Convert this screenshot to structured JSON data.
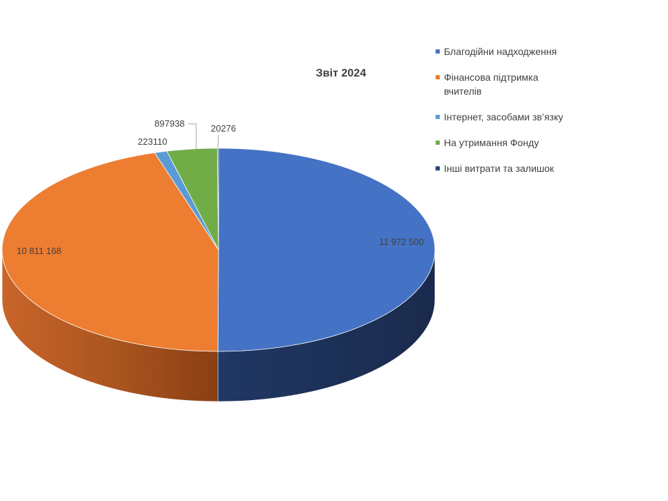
{
  "chart_data": {
    "type": "pie",
    "title": "Звіт 2024",
    "categories": [
      "Благодійни надходження",
      "Фінансова підтримка вчителів",
      "Інтернет, засобами зв’язку",
      "На утримання Фонду",
      "Інші витрати та залишок"
    ],
    "values": [
      11972500,
      10811168,
      223110,
      897938,
      20276
    ],
    "data_labels": [
      "11 972 500",
      "10 811 168",
      "223110",
      "897938",
      "20276"
    ],
    "colors": [
      "#4472C4",
      "#ED7D31",
      "#5B9BD5",
      "#70AD47",
      "#264478"
    ],
    "style": "3d",
    "legend_position": "right"
  }
}
